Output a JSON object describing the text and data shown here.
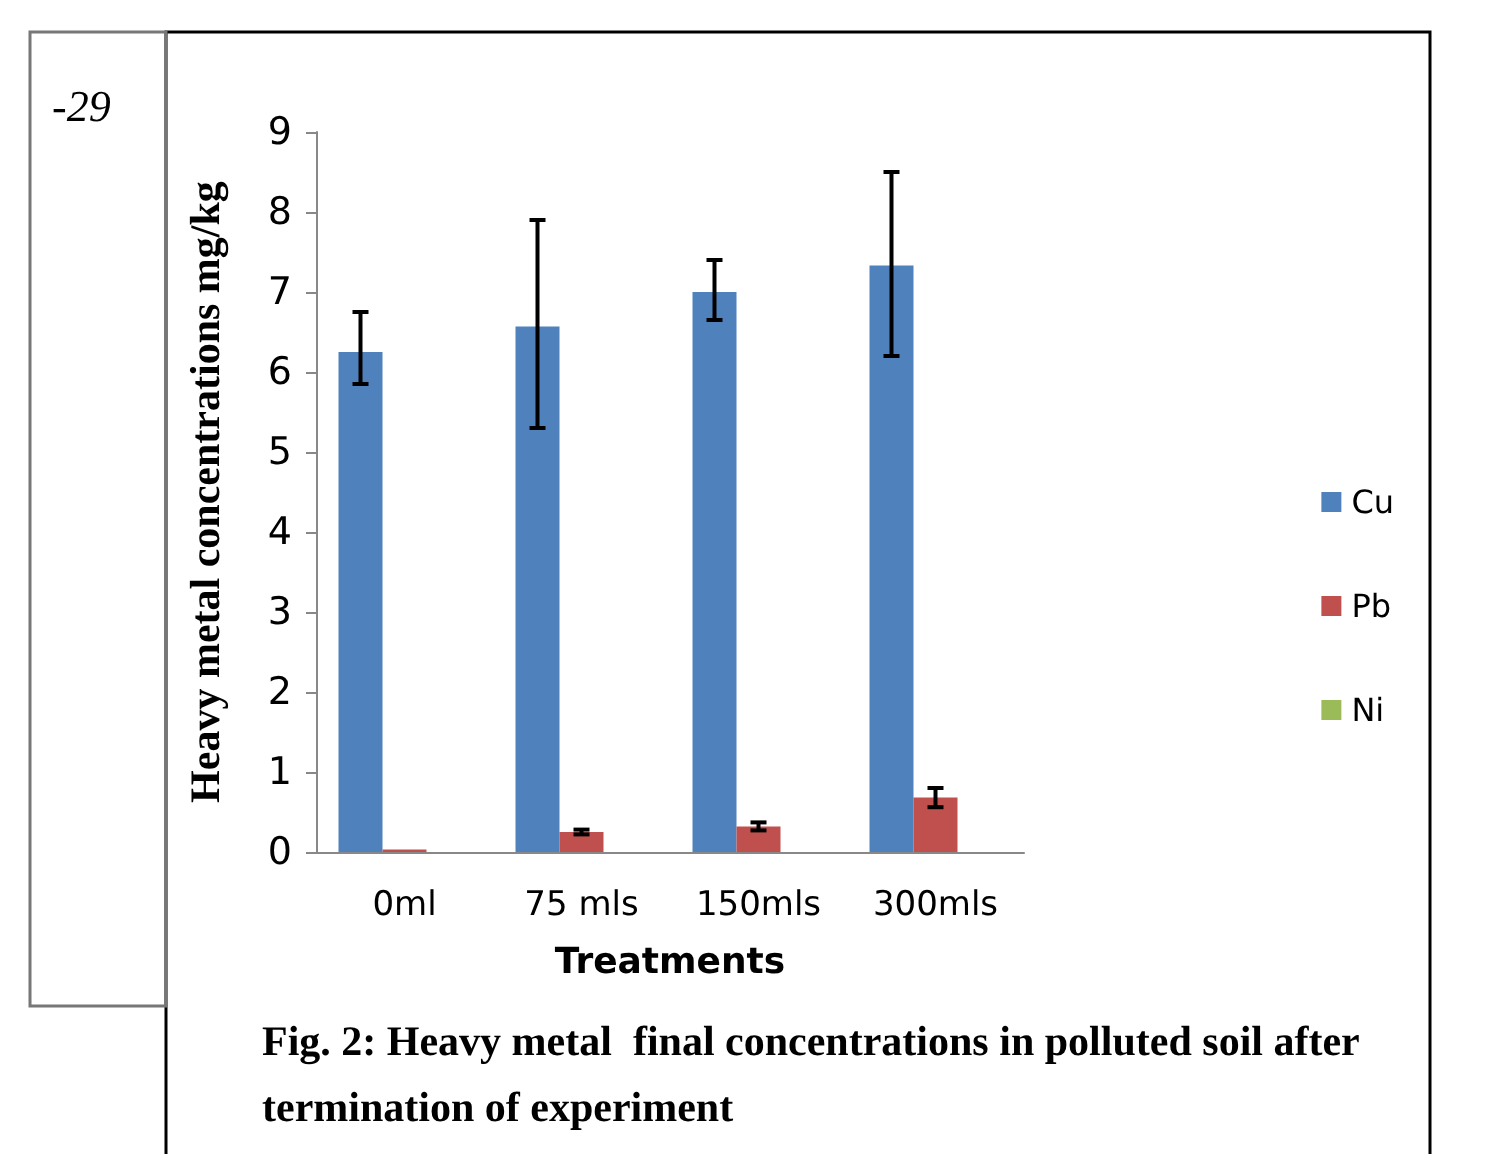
{
  "chart_data": {
    "type": "bar",
    "title": "Fig. 2: Heavy metal  final concentrations in polluted soil after termination of experiment",
    "xlabel": "Treatments",
    "ylabel": "Heavy metal concentrations mg/kg",
    "categories": [
      "0ml",
      "75 mls",
      "150mls",
      "300mls"
    ],
    "series": [
      {
        "name": "Cu",
        "color": "#4f81bd",
        "values": [
          6.25,
          6.57,
          7.0,
          7.33
        ],
        "errors": [
          [
            5.85,
            6.75
          ],
          [
            5.3,
            7.9
          ],
          [
            6.65,
            7.4
          ],
          [
            6.2,
            8.5
          ]
        ]
      },
      {
        "name": "Pb",
        "color": "#c0504d",
        "values": [
          0.03,
          0.25,
          0.32,
          0.68
        ],
        "errors": [
          null,
          0.03,
          0.05,
          0.12
        ]
      },
      {
        "name": "Ni",
        "color": "#9bbb59",
        "values": [
          0,
          0,
          0,
          0
        ]
      }
    ],
    "ylim": [
      0,
      9
    ],
    "yticks": [
      0,
      1,
      2,
      3,
      4,
      5,
      6,
      7,
      8,
      9
    ],
    "grid": false,
    "legend": "right",
    "annotations": [
      "-29"
    ]
  }
}
